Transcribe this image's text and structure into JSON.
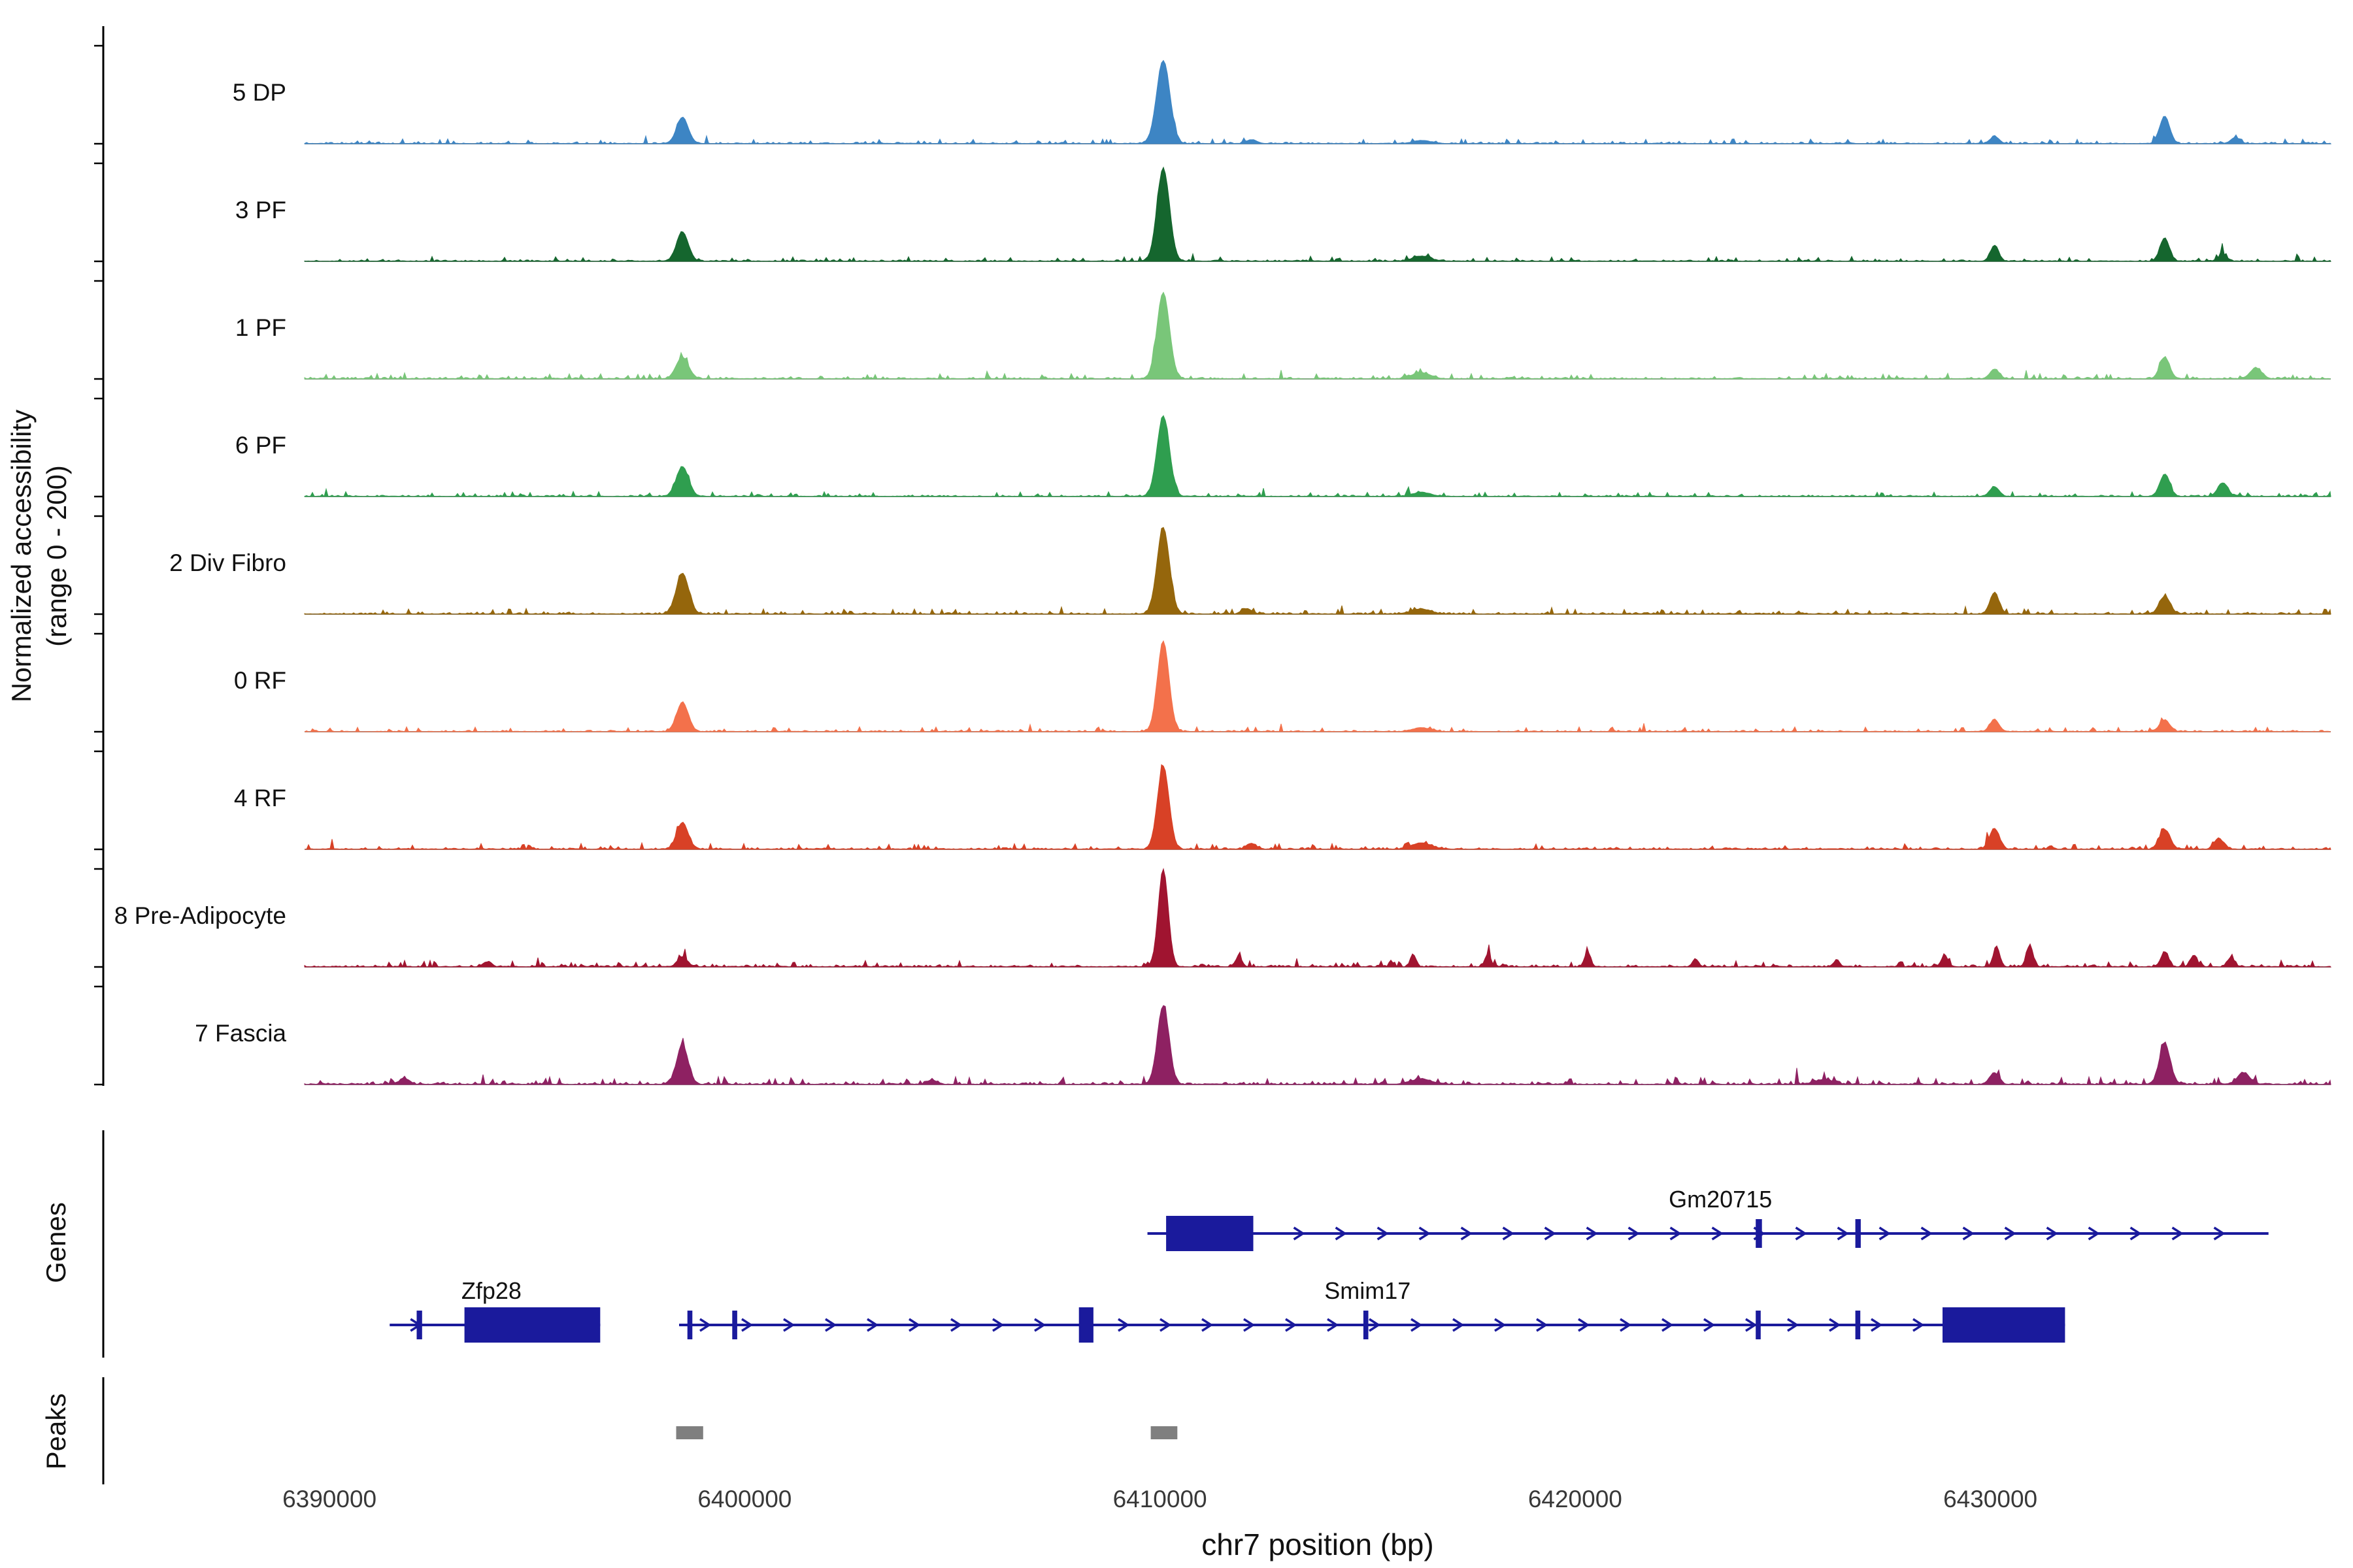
{
  "chart_data": {
    "type": "area",
    "subtype": "genome-coverage-tracks",
    "y_label": "Normalized accessibility",
    "y_label_range": "(range 0 - 200)",
    "genes_label": "Genes",
    "peaks_label": "Peaks",
    "x_axis": {
      "label": "chr7 position (bp)",
      "ticks": [
        6390000,
        6400000,
        6410000,
        6420000,
        6430000
      ],
      "range": [
        6389400,
        6438200
      ]
    },
    "y_axis": {
      "range_per_track": [
        0,
        200
      ]
    },
    "gene_color": "#1a1a9c",
    "peak_color": "#7f7f7f",
    "tracks": [
      {
        "label": "5 DP",
        "color": "#3d85c4",
        "seed": 11,
        "noise": 1.0,
        "peaks": [
          [
            6398500,
            0.27,
            140
          ],
          [
            6410080,
            0.85,
            160
          ],
          [
            6412200,
            0.04,
            120
          ],
          [
            6416300,
            0.03,
            220
          ],
          [
            6430100,
            0.07,
            110
          ],
          [
            6434200,
            0.28,
            120
          ],
          [
            6435900,
            0.06,
            110
          ]
        ]
      },
      {
        "label": "3 PF",
        "color": "#15662e",
        "seed": 22,
        "noise": 1.0,
        "peaks": [
          [
            6398500,
            0.3,
            140
          ],
          [
            6410080,
            0.95,
            150
          ],
          [
            6416300,
            0.05,
            220
          ],
          [
            6430100,
            0.16,
            100
          ],
          [
            6434200,
            0.24,
            110
          ],
          [
            6435600,
            0.07,
            100
          ]
        ]
      },
      {
        "label": "1 PF",
        "color": "#79c679",
        "seed": 33,
        "noise": 1.1,
        "peaks": [
          [
            6398500,
            0.22,
            150
          ],
          [
            6410080,
            0.88,
            150
          ],
          [
            6416300,
            0.06,
            220
          ],
          [
            6430100,
            0.1,
            110
          ],
          [
            6434200,
            0.22,
            120
          ],
          [
            6436400,
            0.11,
            140
          ]
        ]
      },
      {
        "label": "6 PF",
        "color": "#2f9e4f",
        "seed": 44,
        "noise": 1.0,
        "peaks": [
          [
            6398500,
            0.3,
            150
          ],
          [
            6410080,
            0.82,
            150
          ],
          [
            6416300,
            0.04,
            220
          ],
          [
            6430100,
            0.1,
            110
          ],
          [
            6434200,
            0.22,
            120
          ],
          [
            6435600,
            0.14,
            120
          ]
        ]
      },
      {
        "label": "2 Div Fibro",
        "color": "#95660c",
        "seed": 55,
        "noise": 1.1,
        "peaks": [
          [
            6398500,
            0.42,
            150
          ],
          [
            6410080,
            0.88,
            150
          ],
          [
            6412100,
            0.05,
            120
          ],
          [
            6416300,
            0.05,
            220
          ],
          [
            6430100,
            0.22,
            110
          ],
          [
            6434200,
            0.18,
            130
          ]
        ]
      },
      {
        "label": "0 RF",
        "color": "#f3714b",
        "seed": 66,
        "noise": 1.0,
        "peaks": [
          [
            6398500,
            0.3,
            140
          ],
          [
            6410080,
            0.92,
            140
          ],
          [
            6416300,
            0.04,
            220
          ],
          [
            6430100,
            0.12,
            110
          ],
          [
            6434200,
            0.12,
            120
          ]
        ]
      },
      {
        "label": "4 RF",
        "color": "#d84126",
        "seed": 77,
        "noise": 1.2,
        "peaks": [
          [
            6398500,
            0.27,
            140
          ],
          [
            6410080,
            0.85,
            140
          ],
          [
            6412200,
            0.06,
            110
          ],
          [
            6416300,
            0.06,
            240
          ],
          [
            6430100,
            0.21,
            120
          ],
          [
            6434200,
            0.2,
            130
          ],
          [
            6435500,
            0.11,
            110
          ]
        ]
      },
      {
        "label": "8 Pre-Adipocyte",
        "color": "#a01430",
        "seed": 88,
        "noise": 1.4,
        "peaks": [
          [
            6393800,
            0.05,
            100
          ],
          [
            6398500,
            0.1,
            120
          ],
          [
            6410080,
            1.0,
            120
          ],
          [
            6411900,
            0.1,
            80
          ],
          [
            6416100,
            0.12,
            70
          ],
          [
            6417900,
            0.13,
            70
          ],
          [
            6420300,
            0.15,
            70
          ],
          [
            6422900,
            0.08,
            70
          ],
          [
            6426300,
            0.07,
            70
          ],
          [
            6428900,
            0.12,
            80
          ],
          [
            6430150,
            0.2,
            80
          ],
          [
            6430950,
            0.22,
            80
          ],
          [
            6434200,
            0.15,
            90
          ],
          [
            6434900,
            0.12,
            80
          ],
          [
            6435800,
            0.1,
            80
          ]
        ]
      },
      {
        "label": "7 Fascia",
        "color": "#8e2162",
        "seed": 99,
        "noise": 1.6,
        "peaks": [
          [
            6391800,
            0.06,
            120
          ],
          [
            6398500,
            0.4,
            140
          ],
          [
            6404500,
            0.04,
            120
          ],
          [
            6410080,
            0.8,
            140
          ],
          [
            6416300,
            0.05,
            260
          ],
          [
            6426000,
            0.05,
            220
          ],
          [
            6430100,
            0.12,
            110
          ],
          [
            6434200,
            0.42,
            130
          ],
          [
            6436100,
            0.12,
            150
          ]
        ]
      }
    ],
    "genes": [
      {
        "name": "Gm20715",
        "row": 0,
        "start": 6409700,
        "end": 6436700,
        "strand": "+",
        "thick_exons": [
          [
            6410150,
            6412250
          ]
        ],
        "thin_exons": [
          [
            6424350,
            6424500
          ],
          [
            6426750,
            6426880
          ]
        ],
        "label_bp": 6423500
      },
      {
        "name": "Zfp28",
        "row": 1,
        "start": 6391450,
        "end": 6396520,
        "strand": "+",
        "thick_exons": [
          [
            6393250,
            6396520
          ]
        ],
        "thin_exons": [
          [
            6392100,
            6392230
          ]
        ],
        "label_bp": 6393900
      },
      {
        "name": "Smim17",
        "row": 1,
        "start": 6398420,
        "end": 6431800,
        "strand": "+",
        "thick_exons": [
          [
            6408050,
            6408400
          ],
          [
            6428850,
            6431800
          ]
        ],
        "thin_exons": [
          [
            6398620,
            6398740
          ],
          [
            6399700,
            6399820
          ],
          [
            6414900,
            6415020
          ],
          [
            6424350,
            6424470
          ],
          [
            6426750,
            6426870
          ]
        ],
        "label_bp": 6415000
      }
    ],
    "peaks_regions": [
      [
        6398350,
        6399000
      ],
      [
        6409780,
        6410420
      ]
    ]
  }
}
